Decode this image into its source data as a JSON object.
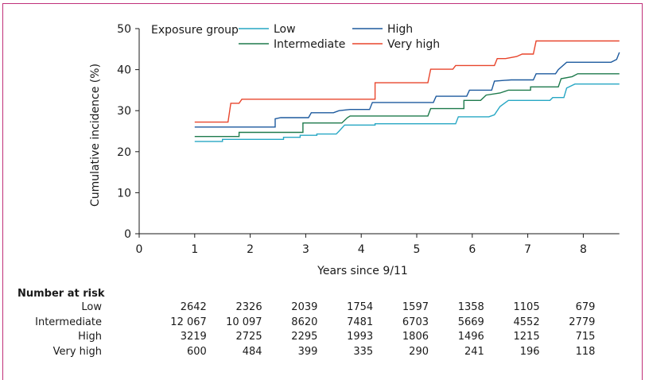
{
  "chart_data": {
    "type": "line",
    "step": true,
    "xlabel": "Years since 9/11",
    "ylabel": "Cumulative incidence (%)",
    "xlim": [
      0,
      8.65
    ],
    "ylim": [
      0,
      50
    ],
    "xticks": [
      0,
      1,
      2,
      3,
      4,
      5,
      6,
      7,
      8
    ],
    "yticks": [
      0,
      10,
      20,
      30,
      40,
      50
    ],
    "grid": false,
    "legend": {
      "title": "Exposure group",
      "placement": "top",
      "entries": [
        "Low",
        "High",
        "Intermediate",
        "Very high"
      ]
    },
    "series": [
      {
        "name": "Low",
        "color": "#27a7c4",
        "points": [
          [
            1.0,
            22.5
          ],
          [
            1.5,
            22.5
          ],
          [
            1.5,
            23.0
          ],
          [
            2.6,
            23.0
          ],
          [
            2.6,
            23.5
          ],
          [
            2.9,
            23.5
          ],
          [
            2.9,
            24.0
          ],
          [
            3.2,
            24.0
          ],
          [
            3.2,
            24.3
          ],
          [
            3.55,
            24.3
          ],
          [
            3.6,
            25.0
          ],
          [
            3.7,
            26.5
          ],
          [
            4.25,
            26.5
          ],
          [
            4.25,
            26.8
          ],
          [
            5.7,
            26.8
          ],
          [
            5.75,
            28.5
          ],
          [
            6.3,
            28.5
          ],
          [
            6.4,
            29.0
          ],
          [
            6.5,
            31.0
          ],
          [
            6.65,
            32.5
          ],
          [
            7.4,
            32.5
          ],
          [
            7.45,
            33.2
          ],
          [
            7.65,
            33.2
          ],
          [
            7.7,
            35.5
          ],
          [
            7.85,
            36.5
          ],
          [
            8.65,
            36.5
          ]
        ]
      },
      {
        "name": "Intermediate",
        "color": "#1e7a4c",
        "points": [
          [
            1.0,
            23.7
          ],
          [
            1.8,
            23.7
          ],
          [
            1.8,
            24.7
          ],
          [
            2.95,
            24.7
          ],
          [
            2.95,
            27.0
          ],
          [
            3.65,
            27.0
          ],
          [
            3.75,
            28.3
          ],
          [
            3.8,
            28.7
          ],
          [
            5.2,
            28.7
          ],
          [
            5.25,
            30.5
          ],
          [
            5.85,
            30.5
          ],
          [
            5.85,
            32.5
          ],
          [
            6.15,
            32.5
          ],
          [
            6.25,
            33.8
          ],
          [
            6.5,
            34.3
          ],
          [
            6.65,
            35.0
          ],
          [
            7.05,
            35.0
          ],
          [
            7.05,
            35.8
          ],
          [
            7.55,
            35.8
          ],
          [
            7.6,
            37.8
          ],
          [
            7.8,
            38.3
          ],
          [
            7.9,
            39.0
          ],
          [
            8.65,
            39.0
          ]
        ]
      },
      {
        "name": "High",
        "color": "#1d5a9e",
        "points": [
          [
            1.0,
            26.0
          ],
          [
            2.45,
            26.0
          ],
          [
            2.45,
            28.0
          ],
          [
            2.55,
            28.3
          ],
          [
            3.05,
            28.3
          ],
          [
            3.1,
            29.5
          ],
          [
            3.5,
            29.5
          ],
          [
            3.6,
            30.0
          ],
          [
            3.8,
            30.3
          ],
          [
            4.15,
            30.3
          ],
          [
            4.2,
            32.0
          ],
          [
            5.3,
            32.0
          ],
          [
            5.35,
            33.5
          ],
          [
            5.9,
            33.5
          ],
          [
            5.95,
            35.0
          ],
          [
            6.35,
            35.0
          ],
          [
            6.4,
            37.2
          ],
          [
            6.7,
            37.5
          ],
          [
            7.1,
            37.5
          ],
          [
            7.15,
            39.0
          ],
          [
            7.5,
            39.0
          ],
          [
            7.55,
            40.0
          ],
          [
            7.7,
            41.8
          ],
          [
            8.5,
            41.8
          ],
          [
            8.6,
            42.5
          ],
          [
            8.65,
            44.2
          ]
        ]
      },
      {
        "name": "Very high",
        "color": "#e8452c",
        "points": [
          [
            1.0,
            27.2
          ],
          [
            1.6,
            27.2
          ],
          [
            1.65,
            31.8
          ],
          [
            1.8,
            31.8
          ],
          [
            1.85,
            32.8
          ],
          [
            4.25,
            32.8
          ],
          [
            4.25,
            36.8
          ],
          [
            5.2,
            36.8
          ],
          [
            5.25,
            40.1
          ],
          [
            5.65,
            40.1
          ],
          [
            5.7,
            41.0
          ],
          [
            6.4,
            41.0
          ],
          [
            6.45,
            42.7
          ],
          [
            6.6,
            42.7
          ],
          [
            6.8,
            43.2
          ],
          [
            6.9,
            43.8
          ],
          [
            7.1,
            43.8
          ],
          [
            7.15,
            47.0
          ],
          [
            8.65,
            47.0
          ]
        ]
      }
    ]
  },
  "risk_table": {
    "title": "Number at risk",
    "years": [
      1,
      2,
      3,
      4,
      5,
      6,
      7,
      8
    ],
    "rows": [
      {
        "label": "Low",
        "values": [
          "2642",
          "2326",
          "2039",
          "1754",
          "1597",
          "1358",
          "1105",
          "679"
        ]
      },
      {
        "label": "Intermediate",
        "values": [
          "12 067",
          "10 097",
          "8620",
          "7481",
          "6703",
          "5669",
          "4552",
          "2779"
        ]
      },
      {
        "label": "High",
        "values": [
          "3219",
          "2725",
          "2295",
          "1993",
          "1806",
          "1496",
          "1215",
          "715"
        ]
      },
      {
        "label": "Very high",
        "values": [
          "600",
          "484",
          "399",
          "335",
          "290",
          "241",
          "196",
          "118"
        ]
      }
    ]
  }
}
